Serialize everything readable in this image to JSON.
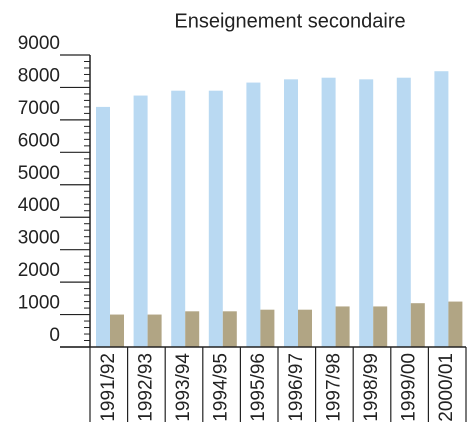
{
  "chart_data": {
    "type": "bar",
    "title": "Enseignement secondaire",
    "categories": [
      "1991/92",
      "1992/93",
      "1993/94",
      "1994/95",
      "1995/96",
      "1996/97",
      "1997/98",
      "1998/99",
      "1999/00",
      "2000/01"
    ],
    "series": [
      {
        "color": "#b9d9f2",
        "values": [
          7400,
          7750,
          7900,
          7900,
          8150,
          8250,
          8300,
          8250,
          8300,
          8500
        ]
      },
      {
        "color": "#b1a584",
        "values": [
          1000,
          1000,
          1100,
          1100,
          1150,
          1150,
          1250,
          1250,
          1350,
          1400
        ]
      }
    ],
    "ylim": [
      0,
      9000
    ],
    "yticks": [
      0,
      1000,
      2000,
      3000,
      4000,
      5000,
      6000,
      7000,
      8000,
      9000
    ]
  }
}
